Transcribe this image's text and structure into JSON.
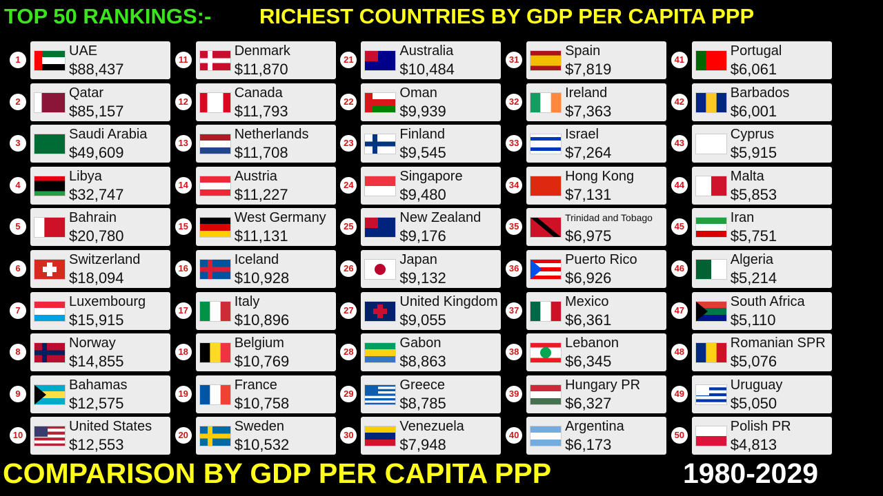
{
  "header": {
    "title_left": "TOP 50 RANKINGS:-",
    "title_right": "RICHEST COUNTRIES BY GDP PER CAPITA PPP"
  },
  "footer": {
    "title": "COMPARISON BY GDP PER CAPITA PPP",
    "years": "1980-2029"
  },
  "rankings": [
    {
      "rank": 1,
      "country": "UAE",
      "value": "$88,437"
    },
    {
      "rank": 2,
      "country": "Qatar",
      "value": "$85,157"
    },
    {
      "rank": 3,
      "country": "Saudi Arabia",
      "value": "$49,609"
    },
    {
      "rank": 4,
      "country": "Libya",
      "value": "$32,747"
    },
    {
      "rank": 5,
      "country": "Bahrain",
      "value": "$20,780"
    },
    {
      "rank": 6,
      "country": "Switzerland",
      "value": "$18,094"
    },
    {
      "rank": 7,
      "country": "Luxembourg",
      "value": "$15,915"
    },
    {
      "rank": 8,
      "country": "Norway",
      "value": "$14,855"
    },
    {
      "rank": 9,
      "country": "Bahamas",
      "value": "$12,575"
    },
    {
      "rank": 10,
      "country": "United States",
      "value": "$12,553"
    },
    {
      "rank": 11,
      "country": "Denmark",
      "value": "$11,870"
    },
    {
      "rank": 12,
      "country": "Canada",
      "value": "$11,793"
    },
    {
      "rank": 13,
      "country": "Netherlands",
      "value": "$11,708"
    },
    {
      "rank": 14,
      "country": "Austria",
      "value": "$11,227"
    },
    {
      "rank": 15,
      "country": "West Germany",
      "value": "$11,131"
    },
    {
      "rank": 16,
      "country": "Iceland",
      "value": "$10,928"
    },
    {
      "rank": 17,
      "country": "Italy",
      "value": "$10,896"
    },
    {
      "rank": 18,
      "country": "Belgium",
      "value": "$10,769"
    },
    {
      "rank": 19,
      "country": "France",
      "value": "$10,758"
    },
    {
      "rank": 20,
      "country": "Sweden",
      "value": "$10,532"
    },
    {
      "rank": 21,
      "country": "Australia",
      "value": "$10,484"
    },
    {
      "rank": 22,
      "country": "Oman",
      "value": "$9,939"
    },
    {
      "rank": 23,
      "country": "Finland",
      "value": "$9,545"
    },
    {
      "rank": 24,
      "country": "Singapore",
      "value": "$9,480"
    },
    {
      "rank": 25,
      "country": "New Zealand",
      "value": "$9,176"
    },
    {
      "rank": 26,
      "country": "Japan",
      "value": "$9,132"
    },
    {
      "rank": 27,
      "country": "United Kingdom",
      "value": "$9,055"
    },
    {
      "rank": 28,
      "country": "Gabon",
      "value": "$8,863"
    },
    {
      "rank": 29,
      "country": "Greece",
      "value": "$8,785"
    },
    {
      "rank": 30,
      "country": "Venezuela",
      "value": "$7,948"
    },
    {
      "rank": 31,
      "country": "Spain",
      "value": "$7,819"
    },
    {
      "rank": 32,
      "country": "Ireland",
      "value": "$7,363"
    },
    {
      "rank": 33,
      "country": "Israel",
      "value": "$7,264"
    },
    {
      "rank": 34,
      "country": "Hong Kong",
      "value": "$7,131"
    },
    {
      "rank": 35,
      "country": "Trinidad and Tobago",
      "value": "$6,975"
    },
    {
      "rank": 36,
      "country": "Puerto Rico",
      "value": "$6,926"
    },
    {
      "rank": 37,
      "country": "Mexico",
      "value": "$6,361"
    },
    {
      "rank": 38,
      "country": "Lebanon",
      "value": "$6,345"
    },
    {
      "rank": 39,
      "country": "Hungary PR",
      "value": "$6,327"
    },
    {
      "rank": 40,
      "country": "Argentina",
      "value": "$6,173"
    },
    {
      "rank": 41,
      "country": "Portugal",
      "value": "$6,061"
    },
    {
      "rank": 42,
      "country": "Barbados",
      "value": "$6,001"
    },
    {
      "rank": 43,
      "country": "Cyprus",
      "value": "$5,915"
    },
    {
      "rank": 44,
      "country": "Malta",
      "value": "$5,853"
    },
    {
      "rank": 45,
      "country": "Iran",
      "value": "$5,751"
    },
    {
      "rank": 46,
      "country": "Algeria",
      "value": "$5,214"
    },
    {
      "rank": 47,
      "country": "South Africa",
      "value": "$5,110"
    },
    {
      "rank": 48,
      "country": "Romanian SPR",
      "value": "$5,076"
    },
    {
      "rank": 49,
      "country": "Uruguay",
      "value": "$5,050"
    },
    {
      "rank": 50,
      "country": "Polish PR",
      "value": "$4,813"
    }
  ]
}
